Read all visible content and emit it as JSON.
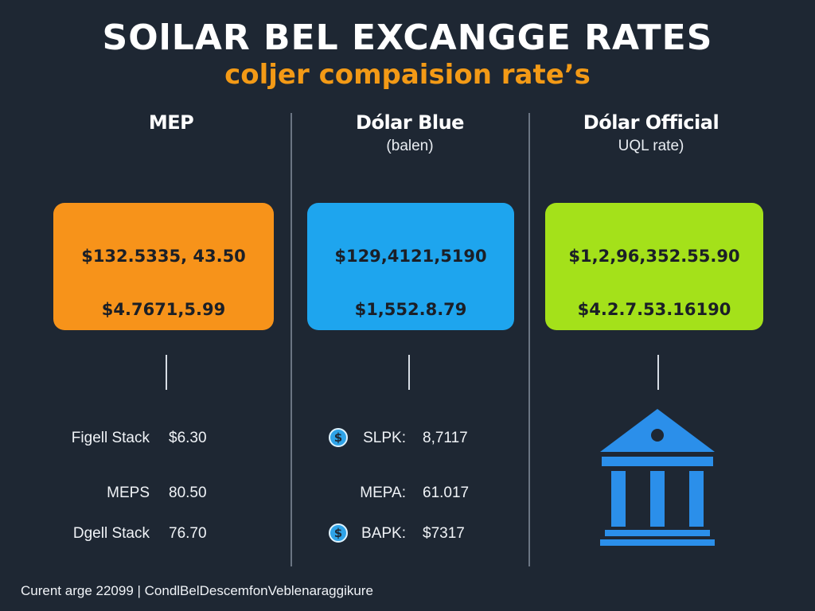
{
  "title": "SOlLAR BEL EXCANGGE RATES",
  "subtitle": "coljer compaision rate’s",
  "columns": [
    {
      "heading": "MEP",
      "subheading": "",
      "card_value_1": "$132.5335, 43.50",
      "card_value_2": "$4.7671,5.99",
      "color": "#f7931a"
    },
    {
      "heading": "Dólar Blue",
      "subheading": "(balen)",
      "card_value_1": "$129,4121,5190",
      "card_value_2": "$1,552.8.79",
      "color": "#1ea5ee"
    },
    {
      "heading": "Dólar Official",
      "subheading": "UQL rate)",
      "card_value_1": "$1,2,96,352.55.90",
      "card_value_2": "$4.2.7.53.16190",
      "color": "#a4e11a"
    }
  ],
  "mep_rows": [
    {
      "label": "Figell Stack",
      "value": "$6.30"
    },
    {
      "label": "MEPS",
      "value": "80.50"
    },
    {
      "label": "Dgell Stack",
      "value": "76.70"
    }
  ],
  "blue_rows": [
    {
      "label": "SLPK:",
      "value": "8,7117",
      "icon": "dollar-coin-icon"
    },
    {
      "label": "MEPA:",
      "value": "61.017",
      "icon": ""
    },
    {
      "label": "BAPK:",
      "value": "$7317",
      "icon": "dollar-coin-icon"
    }
  ],
  "coin_symbol": "$",
  "bank_icon": "bank-building-icon",
  "bank_color": "#2b8fea",
  "footer": "Curent arge 22099 | CondlBelDescemfonVeblenaraggikure"
}
